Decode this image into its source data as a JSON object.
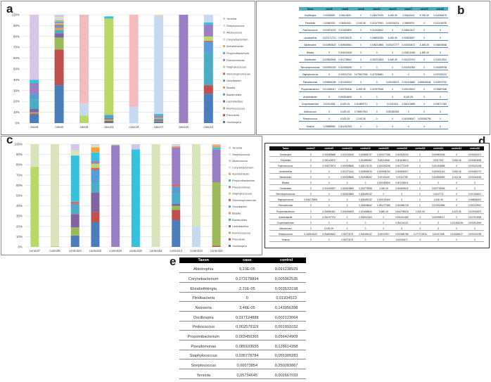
{
  "panels": {
    "a": "a",
    "b": "b",
    "c": "c",
    "d": "d",
    "e": "e"
  },
  "colors": {
    "Oscillospira": "#4a7ebb",
    "Prevotella": "#c0504d",
    "Ruminococcus": "#9bbb59",
    "Lactobacillus": "#8064a2",
    "Bacteroides": "#4bacc6",
    "Blautia": "#f79646",
    "Odoribacter": "#5b9bd5",
    "Stenotrophomonas": "#e0605a",
    "Staphylococcus": "#b8d86a",
    "Pseudomonas": "#9b7fc6",
    "Propionibacterium": "#35c2e0",
    "Acinetobacter": "#f9a03f",
    "Corynebacterium": "#c6d9f1",
    "Alloiococcus": "#f2bcbc",
    "Streptococcus": "#d8e4bc",
    "Yersinia": "#d4c8e6",
    "table_b_header": "#4bacc6",
    "table_d_header": "#000000",
    "table_e_header": "#000000"
  },
  "chart_data": [
    {
      "type": "bar",
      "stacked": true,
      "percent": true,
      "panel": "a",
      "categories": [
        "caso9",
        "caso8",
        "caso6",
        "caso21",
        "caso19",
        "caso17",
        "caso16",
        "caso12"
      ],
      "yticks": [
        "0%",
        "10%",
        "20%",
        "30%",
        "40%",
        "50%",
        "60%",
        "70%",
        "80%",
        "90%",
        "100%"
      ],
      "ylim": [
        0,
        100
      ],
      "grid": true,
      "legend": "right",
      "series": [
        {
          "name": "Oscillospira",
          "values": [
            8,
            35,
            0,
            1,
            0,
            1,
            0,
            27
          ]
        },
        {
          "name": "Prevotella",
          "values": [
            1,
            33,
            0,
            1,
            0,
            0.5,
            0,
            8
          ]
        },
        {
          "name": "Ruminococcus",
          "values": [
            1,
            11,
            0,
            1.5,
            0,
            0.5,
            0,
            0
          ]
        },
        {
          "name": "Lactobacillus",
          "values": [
            3,
            4,
            0,
            1,
            0,
            1,
            0,
            0
          ]
        },
        {
          "name": "Bacteroides",
          "values": [
            9,
            3,
            0,
            1,
            0,
            1,
            0,
            30
          ]
        },
        {
          "name": "Blautia",
          "values": [
            0,
            2,
            0,
            0,
            0,
            1,
            0,
            0
          ]
        },
        {
          "name": "Odoribacter",
          "values": [
            5,
            2,
            0,
            2,
            0,
            1,
            0,
            10
          ]
        },
        {
          "name": "Stenotrophomonas",
          "values": [
            0,
            1,
            0,
            0,
            0,
            0.5,
            0,
            1
          ]
        },
        {
          "name": "Staphylococcus",
          "values": [
            0,
            1,
            7,
            89,
            0,
            0,
            0,
            4
          ]
        },
        {
          "name": "Pseudomonas",
          "values": [
            10,
            1,
            0,
            0,
            0,
            0,
            100,
            11
          ]
        },
        {
          "name": "Propionibacterium",
          "values": [
            3,
            1,
            0,
            2,
            0,
            2,
            0,
            2
          ]
        },
        {
          "name": "Acinetobacter",
          "values": [
            0,
            1,
            0,
            0,
            0,
            0,
            0,
            0
          ]
        },
        {
          "name": "Corynebacterium",
          "values": [
            0,
            2,
            11,
            0,
            15,
            90,
            0,
            7
          ]
        },
        {
          "name": "Alloiococcus",
          "values": [
            0,
            0,
            82,
            0,
            85,
            0.5,
            0,
            0
          ]
        },
        {
          "name": "Streptococcus",
          "values": [
            0,
            1,
            0,
            0,
            0,
            1,
            0,
            0
          ]
        },
        {
          "name": "Yersinia",
          "values": [
            60,
            2,
            0,
            0,
            0,
            0,
            0,
            0
          ]
        }
      ]
    },
    {
      "type": "bar",
      "stacked": true,
      "percent": true,
      "panel": "c",
      "categories": [
        "control7",
        "control5",
        "control23",
        "control22",
        "control20",
        "control18",
        "control15",
        "control14",
        "control13",
        "control10"
      ],
      "yticks": [
        "0%",
        "10%",
        "20%",
        "30%",
        "40%",
        "50%",
        "60%",
        "70%",
        "80%",
        "90%",
        "100%"
      ],
      "ylim": [
        0,
        100
      ],
      "grid": true,
      "legend": "right",
      "series": [
        {
          "name": "Oscillospira",
          "values": [
            0,
            0,
            11,
            24,
            0,
            0,
            0,
            26,
            0,
            0
          ]
        },
        {
          "name": "Prevotella",
          "values": [
            0,
            0,
            0,
            10,
            0,
            0,
            0,
            10,
            0,
            1
          ]
        },
        {
          "name": "Ruminococcus",
          "values": [
            0,
            0.5,
            8,
            0,
            0,
            0,
            0,
            4,
            0,
            62
          ]
        },
        {
          "name": "Lactobacillus",
          "values": [
            0,
            0,
            13,
            19,
            0,
            0,
            0,
            2,
            0,
            0
          ]
        },
        {
          "name": "Bacteroides",
          "values": [
            0,
            0,
            8,
            10,
            0,
            0,
            0,
            10,
            0,
            0
          ]
        },
        {
          "name": "Blautia",
          "values": [
            0,
            0,
            0,
            0,
            0,
            0,
            0,
            0,
            0,
            0
          ]
        },
        {
          "name": "Odoribacter",
          "values": [
            0,
            0,
            2,
            12,
            0,
            0,
            0,
            7,
            0,
            0
          ]
        },
        {
          "name": "Stenotrophomonas",
          "values": [
            0,
            0,
            2,
            2,
            0,
            0,
            0,
            2,
            0,
            0
          ]
        },
        {
          "name": "Staphylococcus",
          "values": [
            78,
            0,
            0,
            4,
            0,
            0,
            0,
            0,
            0,
            0
          ]
        },
        {
          "name": "Pseudomonas",
          "values": [
            0,
            0,
            0,
            3,
            99,
            0,
            0,
            36,
            0,
            32
          ]
        },
        {
          "name": "Propionibacterium",
          "values": [
            0,
            0,
            45,
            8,
            0,
            95,
            0,
            0,
            0,
            2
          ]
        },
        {
          "name": "Acinetobacter",
          "values": [
            0,
            0,
            0,
            5,
            0,
            0,
            0,
            1,
            0,
            2
          ]
        },
        {
          "name": "Corynebacterium",
          "values": [
            0,
            0,
            0,
            0,
            0,
            0,
            0,
            0,
            20,
            0
          ]
        },
        {
          "name": "Alloiococcus",
          "values": [
            0,
            0,
            0,
            0,
            0,
            0,
            0,
            0,
            0,
            0
          ]
        },
        {
          "name": "Streptococcus",
          "values": [
            22,
            99.5,
            5,
            2,
            1,
            0,
            100,
            1,
            80,
            0
          ]
        },
        {
          "name": "Yersinia",
          "values": [
            0,
            0,
            6,
            1,
            0,
            5,
            0,
            1,
            0,
            1
          ]
        }
      ]
    },
    {
      "type": "table",
      "panel": "b",
      "columns": [
        "Taxon",
        "caso9",
        "caso8",
        "caso6",
        "caso21",
        "caso19",
        "caso17",
        "caso16",
        "caso12"
      ],
      "rows": [
        [
          "Oscillospira",
          "0,00030891",
          "0,04613632",
          "0",
          "0,006474025",
          "5,46E-05",
          "0,09440104",
          "8,76E-05",
          "0,042366479"
        ],
        [
          "Prevotella",
          "0,00842091",
          "0,04454162",
          "2,24E-05",
          "0,012479341",
          "0,000218221",
          "0,05859375",
          "0",
          "0,012436799"
        ],
        [
          "Ruminococcus",
          "0,004574192",
          "0,014302892",
          "0",
          "0,011526922",
          "0",
          "0,006510417",
          "0",
          "0"
        ],
        [
          "Lactobacillus",
          "0,022171722",
          "0,005755129",
          "0",
          "0,008526765",
          "5,46E-05",
          "0,002848307",
          "0",
          "0"
        ],
        [
          "Bacteroides",
          "0,043993823",
          "0,005505981",
          "0",
          "0,005210865",
          "0,000272777",
          "0,002053672",
          "4,38E-05",
          "0,046008938"
        ],
        [
          "Blautia",
          "0",
          "0,004240208",
          "0",
          "0",
          "0",
          "0,003011068",
          "4,38E-05",
          "0"
        ],
        [
          "Odoribacter",
          "0,025813594",
          "0,001735961",
          "0",
          "0,002210643",
          "5,46E-05",
          "0,001220703",
          "0",
          "0,016214331"
        ],
        [
          "Stenotrophomonas",
          "0,000932329",
          "0,002468198",
          "0",
          "0",
          "0",
          "0,001302083",
          "0",
          "0,001859708"
        ],
        [
          "Staphylococcus",
          "0",
          "0,002211763",
          "0,079617906",
          "0,417635561",
          "0",
          "0",
          "0",
          "0,007052022"
        ],
        [
          "Pseudomonas",
          "0,098626286",
          "0,001401604",
          "0",
          "0",
          "0,000218221",
          "0,002115885",
          "0,588044648",
          "0,015923752"
        ],
        [
          "Propionibacterium",
          "0,013256417",
          "0,000750446",
          "6,49E-05",
          "0,007579346",
          "0",
          "0,001139323",
          "0",
          "0,005807648"
        ],
        [
          "Acinetobacter",
          "0",
          "0,000916406",
          "0",
          "0",
          "0",
          "8,14E-05",
          "0",
          "0"
        ],
        [
          "Corynebacterium",
          "0,00011654",
          "6,10E-05",
          "0,104809712",
          "0",
          "0,01311511",
          "0,545123698",
          "0",
          "0,008717382"
        ],
        [
          "Alloiococcus",
          "0",
          "6,10E-05",
          "0,798917615",
          "0",
          "0,081833061",
          "0",
          "0",
          "0"
        ],
        [
          "Streptococcus",
          "0",
          "6,10E-05",
          "2,24E-05",
          "0",
          "0",
          "0,010498047",
          "0,000362755",
          "0"
        ],
        [
          "Yersinia",
          "0,28898989",
          "0,001263763",
          "0",
          "0",
          "0",
          "0",
          "0",
          "0"
        ]
      ]
    },
    {
      "type": "table",
      "panel": "d",
      "columns": [
        "Taxon",
        "control7",
        "control5",
        "control23",
        "control22",
        "control20",
        "control18",
        "control15",
        "control14",
        "control13",
        "control10"
      ],
      "rows": [
        [
          "Oscillospira",
          "0",
          "0,002489568",
          "0,001433349",
          "0,004854737",
          "0,000477286",
          "0,003625232",
          "0",
          "0,009802646",
          "0",
          "0,000240471"
        ],
        [
          "Prevotella",
          "0",
          "0,000143572",
          "0",
          "0,001896382",
          "0,00214948",
          "0,001109613",
          "0",
          "0,0017302",
          "3,06E-05",
          "0,001803535"
        ],
        [
          "Ruminococcus",
          "0",
          "0,002079474",
          "0,000955566",
          "0,000175176",
          "0,000263338",
          "0,001772335",
          "0",
          "0,001004858",
          "0",
          "0,000120236"
        ],
        [
          "Lactobacillus",
          "0",
          "0",
          "0,001471241",
          "0,003846619",
          "0,000694234",
          "0,000805407",
          "0",
          "0,000824116",
          "3,06E-05",
          "0,000360707"
        ],
        [
          "Bacteroides",
          "0",
          "0",
          "0,000955566",
          "0,002098092",
          "0,00104135",
          "0,00112785",
          "0",
          "0,003816959",
          "6,11E-05",
          "0,002044006"
        ],
        [
          "Blautia",
          "0",
          "0",
          "0",
          "0",
          "0,000390506",
          "0,001208411",
          "0",
          "0",
          "0",
          "0"
        ],
        [
          "Odoribacter",
          "0",
          "0,001400627",
          "0,000523889",
          "0,002775658",
          "4,34E-05",
          "0,004833642",
          "0",
          "0,002715506",
          "0",
          "0"
        ],
        [
          "Stenotrophomonas",
          "0",
          "0",
          "0,000523889",
          "0,000455132",
          "0",
          "0",
          "0",
          "0,0047712",
          "0",
          "0,007454611"
        ],
        [
          "Staphylococcus",
          "0,844276808",
          "0",
          "0",
          "0,000455132",
          "0,000130169",
          "0",
          "0",
          "4,34E-05",
          "0",
          "0,488098437"
        ],
        [
          "Pseudomonas",
          "0",
          "0",
          "0",
          "0,000606842",
          "0,951277485",
          "0,000966728",
          "0",
          "0,013512856",
          "0",
          "0,252019947"
        ],
        [
          "Propionibacterium",
          "0",
          "0,000881651",
          "0,005494505",
          "0,001668816",
          "8,68E-05",
          "0,844795526",
          "2,30E-05",
          "0",
          "6,11E-05",
          "0,015750872"
        ],
        [
          "Acinetobacter",
          "0",
          "0,000107724",
          "0",
          "0,000510263",
          "0",
          "0,000241482",
          "0",
          "0,000995371",
          "0",
          "0,017513935"
        ],
        [
          "Corynebacterium",
          "0",
          "0",
          "0",
          "0",
          "0",
          "0,000141121",
          "0",
          "0",
          "0,201836206",
          "0,002514949"
        ],
        [
          "Alloiococcus",
          "0",
          "5,10E-05",
          "0",
          "0",
          "0",
          "0",
          "0",
          "0",
          "0",
          "0"
        ],
        [
          "Streptococcus",
          "0,182544422",
          "0,934809642",
          "0,00074475",
          "0,000455132",
          "0,00037827",
          "0,002880786",
          "0,177714916",
          "0,00017498",
          "0,325185127",
          "0,000120236"
        ],
        [
          "Yersinia",
          "0",
          "0",
          "0,00074475",
          "0",
          "0",
          "0,00040471",
          "0",
          "0",
          "0",
          "0"
        ]
      ]
    },
    {
      "type": "table",
      "panel": "e",
      "columns": [
        "Taxon",
        "caso",
        "control"
      ],
      "rows": [
        [
          "Abiotrophia",
          "9,23E-05",
          "0,091238929"
        ],
        [
          "Corynebacterium",
          "0,073178894",
          "0,005962535"
        ],
        [
          "Elizabethkingia",
          "2,31E-05",
          "0,003533158"
        ],
        [
          "Flexibacteria",
          "0",
          "0,01934523"
        ],
        [
          "Neisseria",
          "3,46E-05",
          "0,143956398"
        ],
        [
          "Oscillospira",
          "0,017124888",
          "0,002123064"
        ],
        [
          "Pediococcus",
          "0,002579119",
          "0,001991032"
        ],
        [
          "Propionibacterium",
          "0,003450365",
          "0,056424909"
        ],
        [
          "Pseudomonas",
          "0,089103655",
          "0,128614358"
        ],
        [
          "Staphylococcus",
          "0,035778784",
          "0,055305283"
        ],
        [
          "Streptococcus",
          "0,00073854",
          "0,250283867"
        ],
        [
          "Yersinia",
          "0,05734645",
          "0,002667033"
        ]
      ]
    }
  ]
}
